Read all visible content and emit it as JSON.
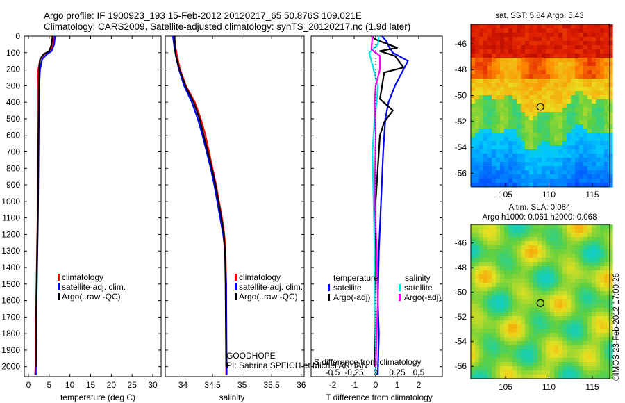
{
  "header": {
    "line1": "Argo profile: IF 1900923_193 15-Feb-2012 20120217_65 50.876S 109.021E",
    "line2": "Climatology: CARS2009. Satellite-adjusted climatology: synTS_20120217.nc (1.9d later)"
  },
  "colors": {
    "climatology": "#ff0000",
    "satellite": "#0000ff",
    "argo": "#000000",
    "cyan": "#00e5e5",
    "magenta": "#ff00ff"
  },
  "chart_data": [
    {
      "type": "line",
      "id": "temperature",
      "xlabel": "temperature (deg C)",
      "ylabel": "",
      "xlim": [
        -1,
        32
      ],
      "ylim": [
        2060,
        0
      ],
      "xticks": [
        0,
        5,
        10,
        15,
        20,
        25,
        30
      ],
      "yticks": [
        0,
        100,
        200,
        300,
        400,
        500,
        600,
        700,
        800,
        900,
        1000,
        1100,
        1200,
        1300,
        1400,
        1500,
        1600,
        1700,
        1800,
        1900,
        2000
      ],
      "legend": [
        "climatology",
        "satellite-adj. clim.",
        "Argo(..raw -QC)"
      ],
      "series": [
        {
          "name": "climatology",
          "color": "#ff0000",
          "points": [
            [
              6.2,
              0
            ],
            [
              6.0,
              50
            ],
            [
              5.4,
              90
            ],
            [
              3.8,
              110
            ],
            [
              2.8,
              140
            ],
            [
              2.4,
              200
            ],
            [
              2.3,
              250
            ],
            [
              2.4,
              300
            ],
            [
              2.4,
              500
            ],
            [
              2.3,
              800
            ],
            [
              2.2,
              1100
            ],
            [
              2.0,
              1400
            ],
            [
              1.8,
              1700
            ],
            [
              1.7,
              2000
            ],
            [
              1.6,
              2050
            ]
          ]
        },
        {
          "name": "satellite-adj. clim.",
          "color": "#0000ff",
          "points": [
            [
              6.4,
              0
            ],
            [
              6.2,
              50
            ],
            [
              5.6,
              90
            ],
            [
              4.4,
              110
            ],
            [
              3.3,
              140
            ],
            [
              2.8,
              200
            ],
            [
              2.6,
              300
            ],
            [
              2.5,
              500
            ],
            [
              2.4,
              800
            ],
            [
              2.3,
              1100
            ],
            [
              2.1,
              1400
            ],
            [
              1.9,
              1700
            ],
            [
              1.8,
              2000
            ],
            [
              1.8,
              2050
            ]
          ]
        },
        {
          "name": "Argo(..raw -QC)",
          "color": "#000000",
          "points": [
            [
              5.8,
              0
            ],
            [
              5.6,
              50
            ],
            [
              5.0,
              90
            ],
            [
              3.6,
              110
            ],
            [
              2.8,
              140
            ],
            [
              2.6,
              200
            ],
            [
              2.5,
              300
            ],
            [
              2.45,
              500
            ],
            [
              2.35,
              800
            ],
            [
              2.25,
              1100
            ],
            [
              2.05,
              1400
            ],
            [
              1.9,
              1700
            ],
            [
              1.8,
              2000
            ]
          ]
        }
      ]
    },
    {
      "type": "line",
      "id": "salinity",
      "xlabel": "salinity",
      "ylabel": "",
      "xlim": [
        33.7,
        36.05
      ],
      "ylim": [
        2060,
        0
      ],
      "xticks": [
        34,
        34.5,
        35,
        35.5,
        36
      ],
      "legend": [
        "climatology",
        "satellite-adj. clim.",
        "Argo(..raw -QC)"
      ],
      "annotations": [
        "GOODHOPE",
        "PI: Sabrina SPEICH et Michel ARHAN"
      ],
      "series": [
        {
          "name": "climatology",
          "color": "#ff0000",
          "points": [
            [
              33.85,
              0
            ],
            [
              33.87,
              60
            ],
            [
              33.9,
              120
            ],
            [
              33.95,
              200
            ],
            [
              34.05,
              300
            ],
            [
              34.2,
              400
            ],
            [
              34.3,
              500
            ],
            [
              34.38,
              600
            ],
            [
              34.44,
              700
            ],
            [
              34.5,
              800
            ],
            [
              34.56,
              900
            ],
            [
              34.61,
              1000
            ],
            [
              34.66,
              1100
            ],
            [
              34.7,
              1200
            ],
            [
              34.72,
              1300
            ],
            [
              34.73,
              1500
            ],
            [
              34.73,
              2050
            ]
          ]
        },
        {
          "name": "satellite-adj. clim.",
          "color": "#0000ff",
          "points": [
            [
              33.83,
              0
            ],
            [
              33.85,
              60
            ],
            [
              33.88,
              120
            ],
            [
              33.93,
              200
            ],
            [
              34.02,
              300
            ],
            [
              34.15,
              400
            ],
            [
              34.25,
              500
            ],
            [
              34.33,
              600
            ],
            [
              34.4,
              700
            ],
            [
              34.47,
              800
            ],
            [
              34.53,
              900
            ],
            [
              34.58,
              1000
            ],
            [
              34.63,
              1100
            ],
            [
              34.68,
              1200
            ],
            [
              34.71,
              1300
            ],
            [
              34.73,
              1500
            ],
            [
              34.74,
              2050
            ]
          ]
        },
        {
          "name": "Argo(..raw -QC)",
          "color": "#000000",
          "points": [
            [
              33.86,
              0
            ],
            [
              33.86,
              60
            ],
            [
              33.88,
              120
            ],
            [
              33.94,
              200
            ],
            [
              34.04,
              300
            ],
            [
              34.18,
              400
            ],
            [
              34.28,
              500
            ],
            [
              34.35,
              600
            ],
            [
              34.42,
              700
            ],
            [
              34.49,
              800
            ],
            [
              34.55,
              900
            ],
            [
              34.6,
              1000
            ],
            [
              34.65,
              1100
            ],
            [
              34.69,
              1200
            ],
            [
              34.71,
              1300
            ],
            [
              34.72,
              1500
            ],
            [
              34.73,
              2000
            ]
          ]
        }
      ]
    },
    {
      "type": "line",
      "id": "difference",
      "xlabel": "T difference from climatology",
      "xlabel_top": "S difference from climatology",
      "xlim": [
        -3,
        3.1
      ],
      "ylim": [
        2060,
        0
      ],
      "xticks": [
        -2,
        -1,
        0,
        1,
        2
      ],
      "top_ticks": [
        "-0.5",
        "-0.25",
        "0",
        "0.25",
        "0.5"
      ],
      "legend": {
        "headers": [
          "temperature",
          "salinity"
        ],
        "items": [
          "satellite",
          "Argo(-adj)",
          "satellite",
          "Argo(-adj)"
        ]
      },
      "series": [
        {
          "name": "satellite",
          "color": "#0000ff",
          "points": [
            [
              0.3,
              0
            ],
            [
              0.5,
              30
            ],
            [
              0.6,
              60
            ],
            [
              0.8,
              100
            ],
            [
              1.5,
              150
            ],
            [
              1.3,
              200
            ],
            [
              0.9,
              300
            ],
            [
              0.6,
              400
            ],
            [
              0.45,
              500
            ],
            [
              0.35,
              700
            ],
            [
              0.25,
              1000
            ],
            [
              0.15,
              1300
            ],
            [
              0.1,
              1600
            ],
            [
              0.15,
              1800
            ],
            [
              0.1,
              2050
            ]
          ]
        },
        {
          "name": "Argo(-adj)",
          "color": "#000000",
          "points": [
            [
              -0.2,
              0
            ],
            [
              0.0,
              20
            ],
            [
              1.0,
              70
            ],
            [
              0.2,
              90
            ],
            [
              0.9,
              120
            ],
            [
              1.3,
              190
            ],
            [
              0.4,
              220
            ],
            [
              0.3,
              300
            ],
            [
              0.2,
              380
            ],
            [
              0.8,
              450
            ],
            [
              0.4,
              520
            ],
            [
              0.2,
              600
            ],
            [
              0.1,
              800
            ],
            [
              0.0,
              1000
            ],
            [
              0.0,
              1300
            ],
            [
              -0.05,
              1600
            ],
            [
              -0.05,
              1800
            ],
            [
              -0.05,
              2000
            ]
          ]
        },
        {
          "name": "satellite",
          "color": "#00e5e5",
          "points": [
            [
              0.15,
              0
            ],
            [
              0.1,
              50
            ],
            [
              -0.3,
              100
            ],
            [
              -0.1,
              200
            ],
            [
              0.1,
              300
            ],
            [
              0.05,
              400
            ],
            [
              -0.05,
              500
            ],
            [
              -0.15,
              700
            ],
            [
              -0.1,
              1000
            ],
            [
              -0.05,
              1300
            ],
            [
              -0.05,
              1600
            ],
            [
              0.0,
              1900
            ],
            [
              0.0,
              2050
            ]
          ]
        },
        {
          "name": "Argo(-adj)",
          "color": "#ff00ff",
          "points": [
            [
              -0.15,
              0
            ],
            [
              -0.2,
              80
            ],
            [
              0.2,
              120
            ],
            [
              0.2,
              200
            ],
            [
              0.0,
              300
            ],
            [
              -0.05,
              400
            ],
            [
              0.0,
              600
            ],
            [
              -0.05,
              1000
            ],
            [
              0.05,
              1300
            ],
            [
              0.1,
              1600
            ],
            [
              0.05,
              1800
            ],
            [
              0.0,
              2000
            ]
          ]
        }
      ]
    },
    {
      "type": "heatmap",
      "id": "sst",
      "title": "sat. SST: 5.84 Argo: 5.43",
      "xlim": [
        101,
        117
      ],
      "ylim": [
        -57,
        -44.5
      ],
      "xticks": [
        105,
        110,
        115
      ],
      "yticks": [
        -46,
        -48,
        -50,
        -52,
        -54,
        -56
      ],
      "marker": [
        109.021,
        -50.876
      ]
    },
    {
      "type": "heatmap",
      "id": "sla",
      "title": "Altim. SLA: 0.084",
      "subtitle": "Argo h1000: 0.061 h2000: 0.068",
      "xlim": [
        101,
        117
      ],
      "ylim": [
        -57,
        -44.5
      ],
      "xticks": [
        105,
        110,
        115
      ],
      "yticks": [
        -46,
        -48,
        -50,
        -52,
        -54,
        -56
      ],
      "marker": [
        109.021,
        -50.876
      ],
      "side_label": "©IMOS 23-Feb-2012 17:00:26"
    }
  ]
}
